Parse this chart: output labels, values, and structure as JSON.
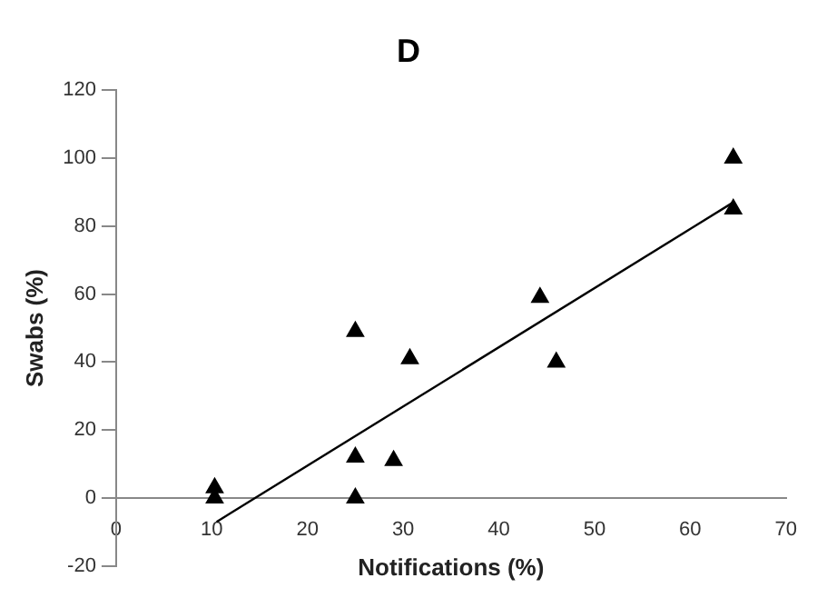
{
  "chart_data": {
    "type": "scatter",
    "title": "D",
    "xlabel": "Notifications (%)",
    "ylabel": "Swabs (%)",
    "xlim": [
      0,
      70
    ],
    "xticks": [
      0,
      10,
      20,
      30,
      40,
      50,
      60,
      70
    ],
    "ylim": [
      -20,
      120
    ],
    "yticks": [
      -20,
      0,
      20,
      40,
      60,
      80,
      100,
      120
    ],
    "grid": false,
    "legend": false,
    "series": [
      {
        "type": "scatter",
        "color": "#000000",
        "marker": "triangle",
        "x": [
          10.3,
          10.3,
          25,
          25,
          25,
          29,
          30.7,
          44.3,
          46,
          64.5,
          64.5
        ],
        "values": [
          3,
          0,
          49,
          12,
          0,
          11,
          41,
          59,
          40,
          100,
          85
        ]
      },
      {
        "type": "line",
        "color": "#000000",
        "marker": "none",
        "line_style": "solid",
        "x": [
          10.5,
          64.5
        ],
        "values": [
          -7,
          87
        ]
      }
    ]
  }
}
